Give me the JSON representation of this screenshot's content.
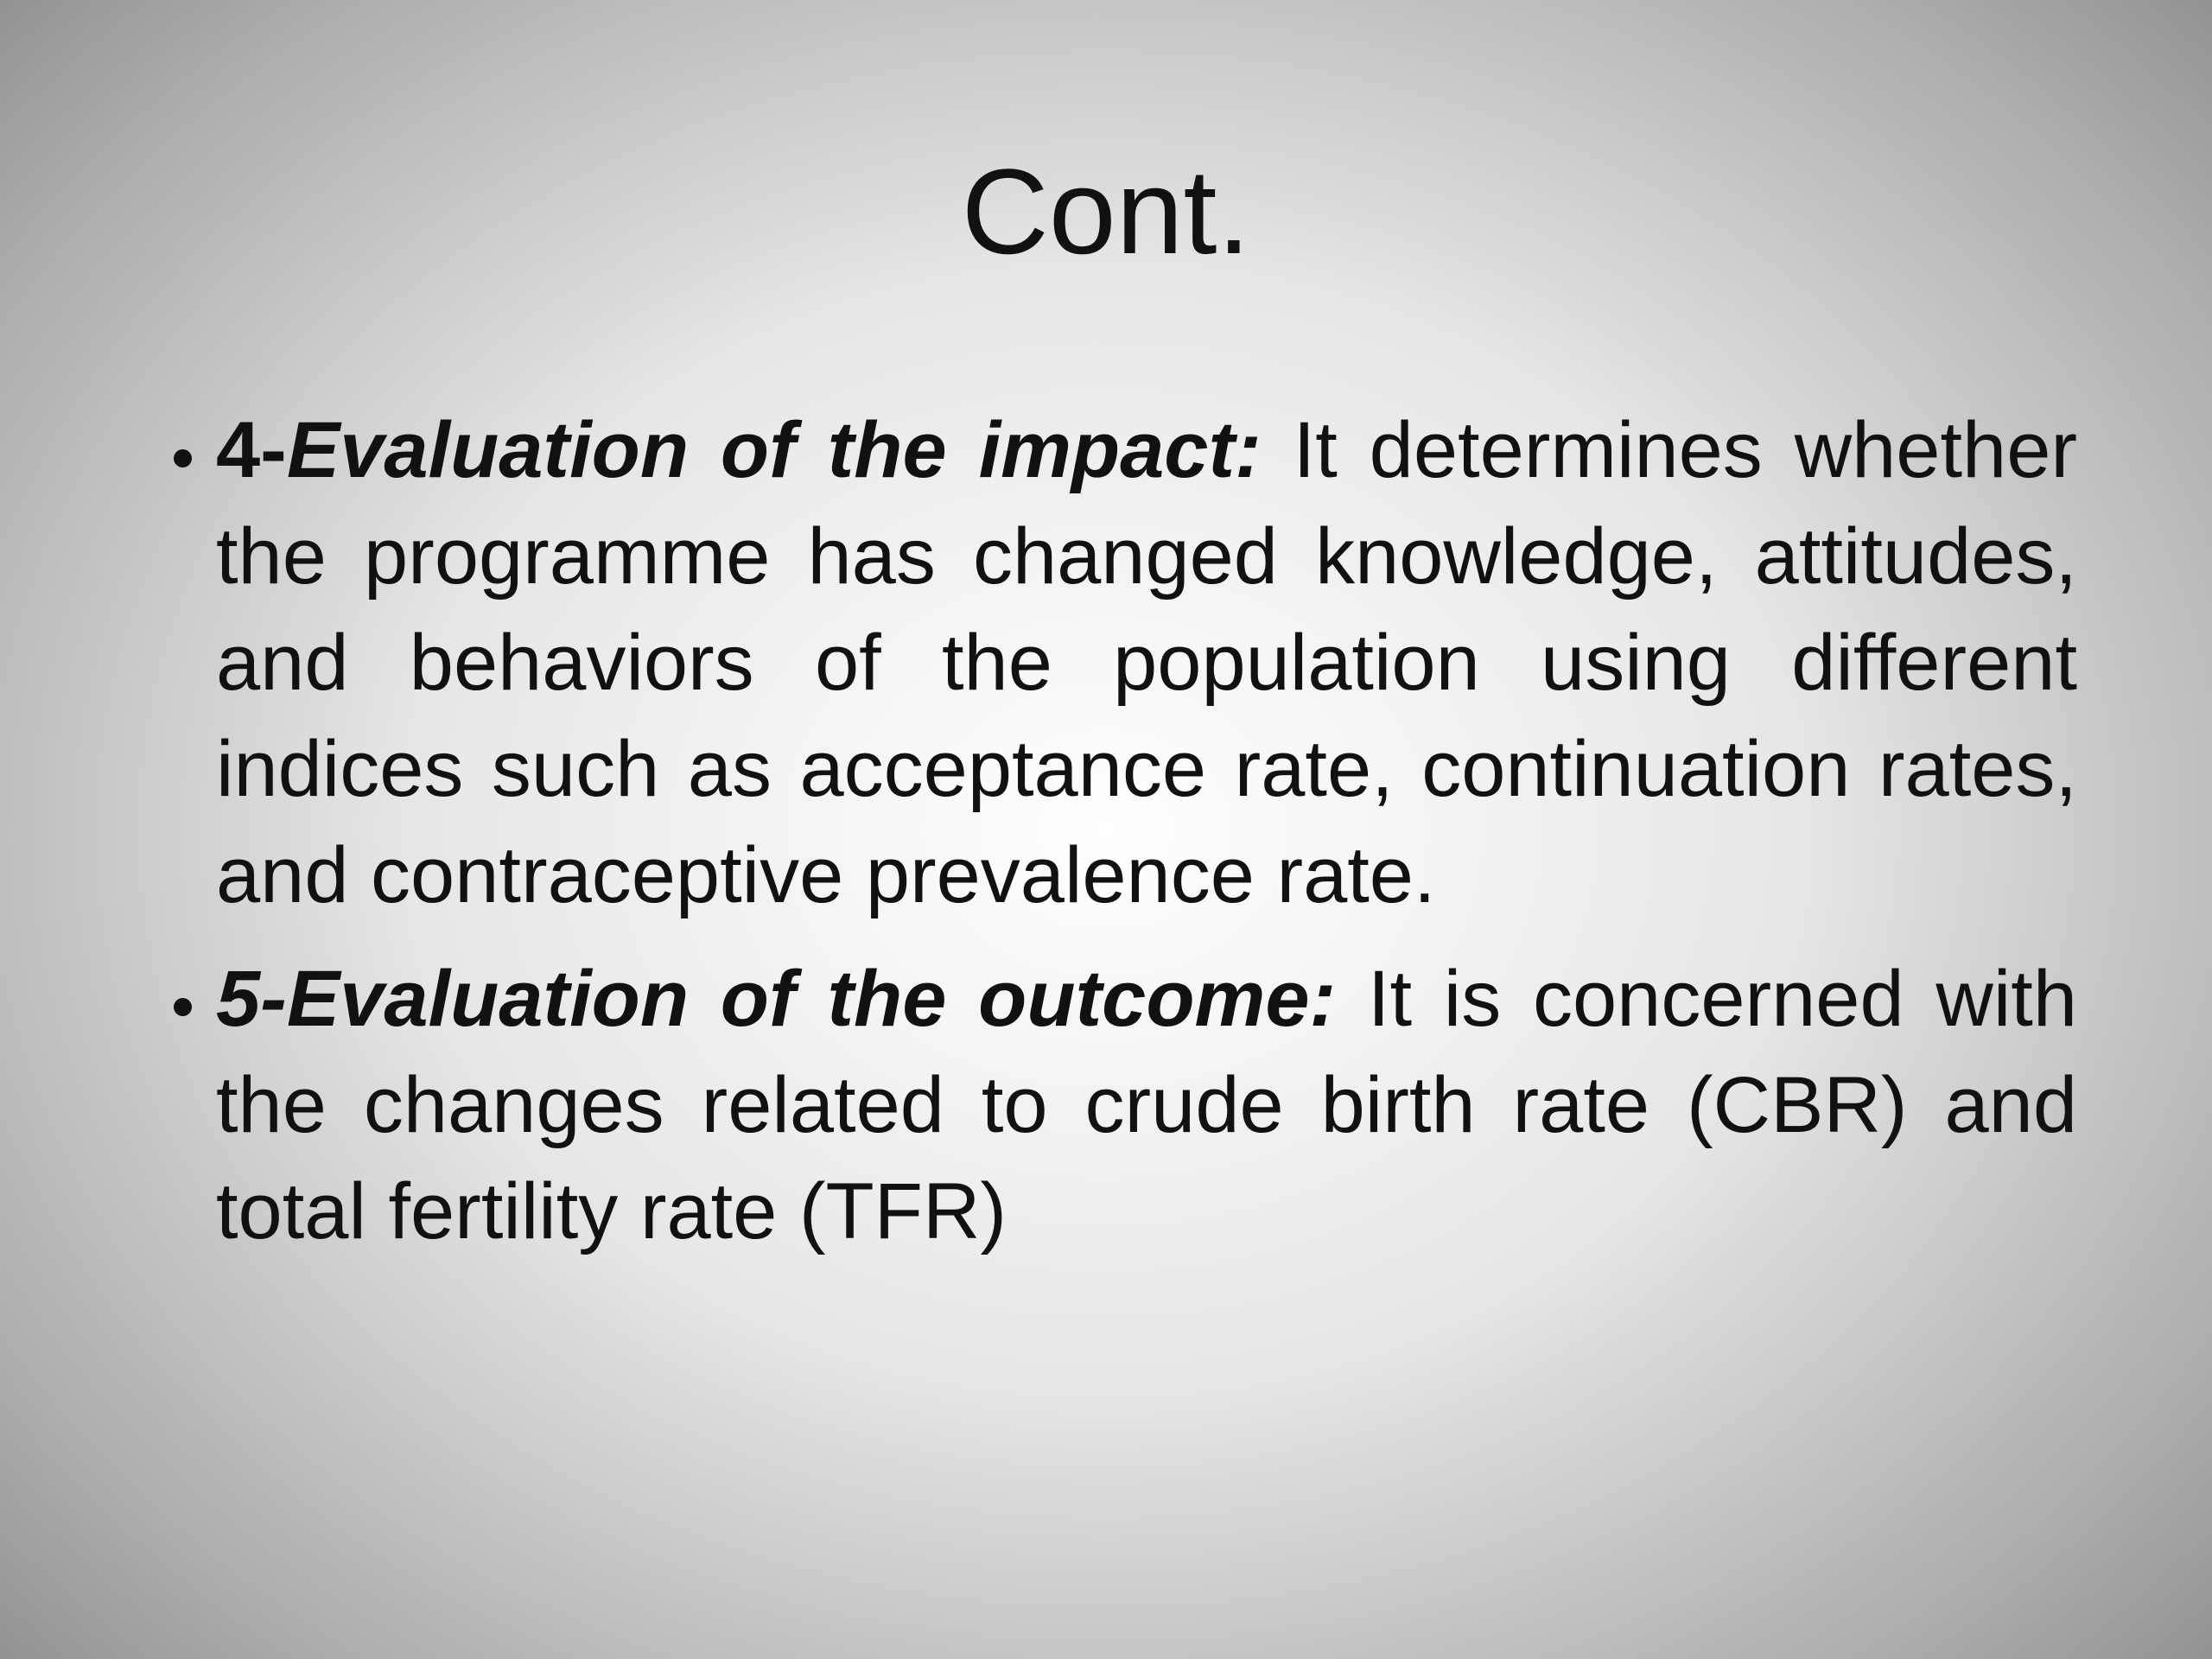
{
  "slide": {
    "title": "Cont.",
    "bullets": [
      {
        "number": "4-",
        "heading": "Evaluation of the impact:",
        "text": "It determines whether the programme has changed knowledge, attitudes, and behaviors of the population using different indices such as acceptance rate, continuation rates, and contraceptive prevalence rate."
      },
      {
        "number": "5-",
        "heading": "Evaluation of the outcome:",
        "text": "It is concerned with the changes related to crude birth rate (CBR) and total fertility rate (TFR)"
      }
    ]
  }
}
